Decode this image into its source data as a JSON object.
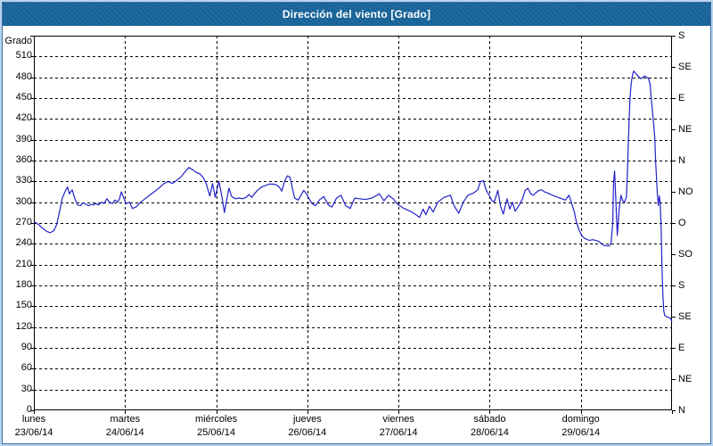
{
  "window": {
    "title": "Dirección del viento [Grado]"
  },
  "colors": {
    "titlebar_bg": "#17659b",
    "titlebar_text": "#ffffff",
    "line": "#2121c8",
    "grid": "#000000",
    "frame_outer": "#b9d3ec",
    "frame_inner": "#3e6fa6",
    "plot_bg": "#ffffff"
  },
  "chart_data": {
    "type": "line",
    "title": "Dirección del viento [Grado]",
    "ylabel": "Grado",
    "ylim": [
      0,
      540
    ],
    "y_tick_step": 30,
    "y_ticks": [
      510,
      480,
      450,
      420,
      390,
      360,
      330,
      300,
      270,
      240,
      210,
      180,
      150,
      120,
      90,
      60,
      30,
      0
    ],
    "grid": "dashed",
    "legend": "none",
    "x_axis_days": [
      {
        "name": "lunes",
        "date": "23/06/14"
      },
      {
        "name": "martes",
        "date": "24/06/14"
      },
      {
        "name": "miércoles",
        "date": "25/06/14"
      },
      {
        "name": "jueves",
        "date": "26/06/14"
      },
      {
        "name": "viernes",
        "date": "27/06/14"
      },
      {
        "name": "sábado",
        "date": "28/06/14"
      },
      {
        "name": "domingo",
        "date": "29/06/14"
      }
    ],
    "right_axis_compass": [
      {
        "deg": 540,
        "label": "S"
      },
      {
        "deg": 495,
        "label": "SE"
      },
      {
        "deg": 450,
        "label": "E"
      },
      {
        "deg": 405,
        "label": "NE"
      },
      {
        "deg": 360,
        "label": "N"
      },
      {
        "deg": 315,
        "label": "NO"
      },
      {
        "deg": 270,
        "label": "O"
      },
      {
        "deg": 225,
        "label": "SO"
      },
      {
        "deg": 180,
        "label": "S"
      },
      {
        "deg": 135,
        "label": "SE"
      },
      {
        "deg": 90,
        "label": "E"
      },
      {
        "deg": 45,
        "label": "NE"
      },
      {
        "deg": 0,
        "label": "N"
      }
    ],
    "line_color": "#2121c8",
    "series": [
      {
        "name": "Dirección del viento",
        "unit": "grado",
        "x_unit": "días desde lunes 23/06/14",
        "points": [
          [
            0,
            272
          ],
          [
            0.05,
            268
          ],
          [
            0.1,
            262
          ],
          [
            0.14,
            258
          ],
          [
            0.18,
            256
          ],
          [
            0.22,
            259
          ],
          [
            0.25,
            268
          ],
          [
            0.28,
            285
          ],
          [
            0.31,
            305
          ],
          [
            0.34,
            315
          ],
          [
            0.37,
            322
          ],
          [
            0.39,
            312
          ],
          [
            0.42,
            318
          ],
          [
            0.45,
            305
          ],
          [
            0.48,
            296
          ],
          [
            0.51,
            295
          ],
          [
            0.54,
            299
          ],
          [
            0.57,
            297
          ],
          [
            0.6,
            295
          ],
          [
            0.63,
            297
          ],
          [
            0.65,
            296
          ],
          [
            0.68,
            298
          ],
          [
            0.71,
            296
          ],
          [
            0.74,
            300
          ],
          [
            0.77,
            298
          ],
          [
            0.8,
            305
          ],
          [
            0.83,
            300
          ],
          [
            0.86,
            298
          ],
          [
            0.89,
            303
          ],
          [
            0.92,
            300
          ],
          [
            0.94,
            305
          ],
          [
            0.96,
            315
          ],
          [
            0.98,
            308
          ],
          [
            1.01,
            298
          ],
          [
            1.05,
            300
          ],
          [
            1.08,
            291
          ],
          [
            1.12,
            293
          ],
          [
            1.17,
            300
          ],
          [
            1.22,
            305
          ],
          [
            1.27,
            310
          ],
          [
            1.32,
            315
          ],
          [
            1.37,
            320
          ],
          [
            1.42,
            326
          ],
          [
            1.47,
            330
          ],
          [
            1.52,
            327
          ],
          [
            1.56,
            331
          ],
          [
            1.61,
            336
          ],
          [
            1.66,
            344
          ],
          [
            1.7,
            350
          ],
          [
            1.74,
            347
          ],
          [
            1.78,
            343
          ],
          [
            1.82,
            341
          ],
          [
            1.86,
            335
          ],
          [
            1.89,
            327
          ],
          [
            1.93,
            309
          ],
          [
            1.96,
            327
          ],
          [
            1.99,
            307
          ],
          [
            2.03,
            330
          ],
          [
            2.06,
            310
          ],
          [
            2.09,
            285
          ],
          [
            2.11,
            300
          ],
          [
            2.14,
            320
          ],
          [
            2.17,
            308
          ],
          [
            2.21,
            305
          ],
          [
            2.25,
            306
          ],
          [
            2.29,
            305
          ],
          [
            2.33,
            307
          ],
          [
            2.36,
            311
          ],
          [
            2.39,
            307
          ],
          [
            2.42,
            312
          ],
          [
            2.46,
            318
          ],
          [
            2.5,
            322
          ],
          [
            2.54,
            324
          ],
          [
            2.58,
            326
          ],
          [
            2.62,
            326
          ],
          [
            2.66,
            325
          ],
          [
            2.69,
            322
          ],
          [
            2.72,
            316
          ],
          [
            2.75,
            330
          ],
          [
            2.78,
            338
          ],
          [
            2.81,
            336
          ],
          [
            2.84,
            318
          ],
          [
            2.86,
            306
          ],
          [
            2.9,
            303
          ],
          [
            2.93,
            310
          ],
          [
            2.96,
            317
          ],
          [
            2.99,
            312
          ],
          [
            3.02,
            305
          ],
          [
            3.05,
            298
          ],
          [
            3.09,
            295
          ],
          [
            3.13,
            303
          ],
          [
            3.18,
            308
          ],
          [
            3.23,
            296
          ],
          [
            3.27,
            293
          ],
          [
            3.32,
            306
          ],
          [
            3.37,
            310
          ],
          [
            3.42,
            295
          ],
          [
            3.47,
            291
          ],
          [
            3.52,
            306
          ],
          [
            3.57,
            305
          ],
          [
            3.64,
            304
          ],
          [
            3.71,
            306
          ],
          [
            3.79,
            312
          ],
          [
            3.84,
            302
          ],
          [
            3.89,
            310
          ],
          [
            3.94,
            305
          ],
          [
            3.99,
            297
          ],
          [
            4.06,
            291
          ],
          [
            4.13,
            287
          ],
          [
            4.18,
            283
          ],
          [
            4.23,
            278
          ],
          [
            4.27,
            290
          ],
          [
            4.3,
            282
          ],
          [
            4.34,
            294
          ],
          [
            4.38,
            286
          ],
          [
            4.43,
            300
          ],
          [
            4.5,
            307
          ],
          [
            4.57,
            310
          ],
          [
            4.61,
            295
          ],
          [
            4.66,
            284
          ],
          [
            4.71,
            300
          ],
          [
            4.76,
            310
          ],
          [
            4.82,
            313
          ],
          [
            4.87,
            318
          ],
          [
            4.9,
            330
          ],
          [
            4.93,
            331
          ],
          [
            4.96,
            318
          ],
          [
            4.99,
            311
          ],
          [
            5.02,
            303
          ],
          [
            5.05,
            300
          ],
          [
            5.09,
            317
          ],
          [
            5.12,
            294
          ],
          [
            5.15,
            283
          ],
          [
            5.19,
            305
          ],
          [
            5.22,
            290
          ],
          [
            5.25,
            300
          ],
          [
            5.28,
            287
          ],
          [
            5.32,
            295
          ],
          [
            5.36,
            305
          ],
          [
            5.39,
            317
          ],
          [
            5.42,
            320
          ],
          [
            5.45,
            312
          ],
          [
            5.48,
            310
          ],
          [
            5.5,
            313
          ],
          [
            5.54,
            317
          ],
          [
            5.57,
            318
          ],
          [
            5.6,
            315
          ],
          [
            5.64,
            313
          ],
          [
            5.67,
            311
          ],
          [
            5.71,
            309
          ],
          [
            5.75,
            307
          ],
          [
            5.79,
            305
          ],
          [
            5.83,
            303
          ],
          [
            5.87,
            310
          ],
          [
            5.9,
            298
          ],
          [
            5.93,
            285
          ],
          [
            5.95,
            272
          ],
          [
            5.98,
            260
          ],
          [
            6.01,
            252
          ],
          [
            6.04,
            248
          ],
          [
            6.07,
            246
          ],
          [
            6.1,
            245
          ],
          [
            6.13,
            246
          ],
          [
            6.16,
            245
          ],
          [
            6.19,
            244
          ],
          [
            6.22,
            241
          ],
          [
            6.25,
            238
          ],
          [
            6.28,
            237
          ],
          [
            6.31,
            237
          ],
          [
            6.33,
            240
          ],
          [
            6.35,
            270
          ],
          [
            6.36,
            330
          ],
          [
            6.37,
            345
          ],
          [
            6.38,
            315
          ],
          [
            6.4,
            252
          ],
          [
            6.42,
            290
          ],
          [
            6.44,
            310
          ],
          [
            6.46,
            302
          ],
          [
            6.48,
            300
          ],
          [
            6.5,
            308
          ],
          [
            6.51,
            340
          ],
          [
            6.52,
            380
          ],
          [
            6.53,
            420
          ],
          [
            6.54,
            450
          ],
          [
            6.55,
            468
          ],
          [
            6.56,
            478
          ],
          [
            6.57,
            485
          ],
          [
            6.58,
            489
          ],
          [
            6.6,
            486
          ],
          [
            6.62,
            483
          ],
          [
            6.64,
            480
          ],
          [
            6.66,
            478
          ],
          [
            6.68,
            480
          ],
          [
            6.7,
            482
          ],
          [
            6.72,
            480
          ],
          [
            6.74,
            479
          ],
          [
            6.76,
            470
          ],
          [
            6.77,
            452
          ],
          [
            6.79,
            425
          ],
          [
            6.81,
            395
          ],
          [
            6.82,
            360
          ],
          [
            6.83,
            335
          ],
          [
            6.84,
            312
          ],
          [
            6.85,
            295
          ],
          [
            6.86,
            309
          ],
          [
            6.87,
            300
          ],
          [
            6.88,
            268
          ],
          [
            6.89,
            210
          ],
          [
            6.9,
            165
          ],
          [
            6.91,
            143
          ],
          [
            6.92,
            137
          ],
          [
            6.94,
            135
          ],
          [
            6.96,
            134
          ],
          [
            6.98,
            133
          ],
          [
            7,
            128
          ]
        ]
      }
    ]
  }
}
